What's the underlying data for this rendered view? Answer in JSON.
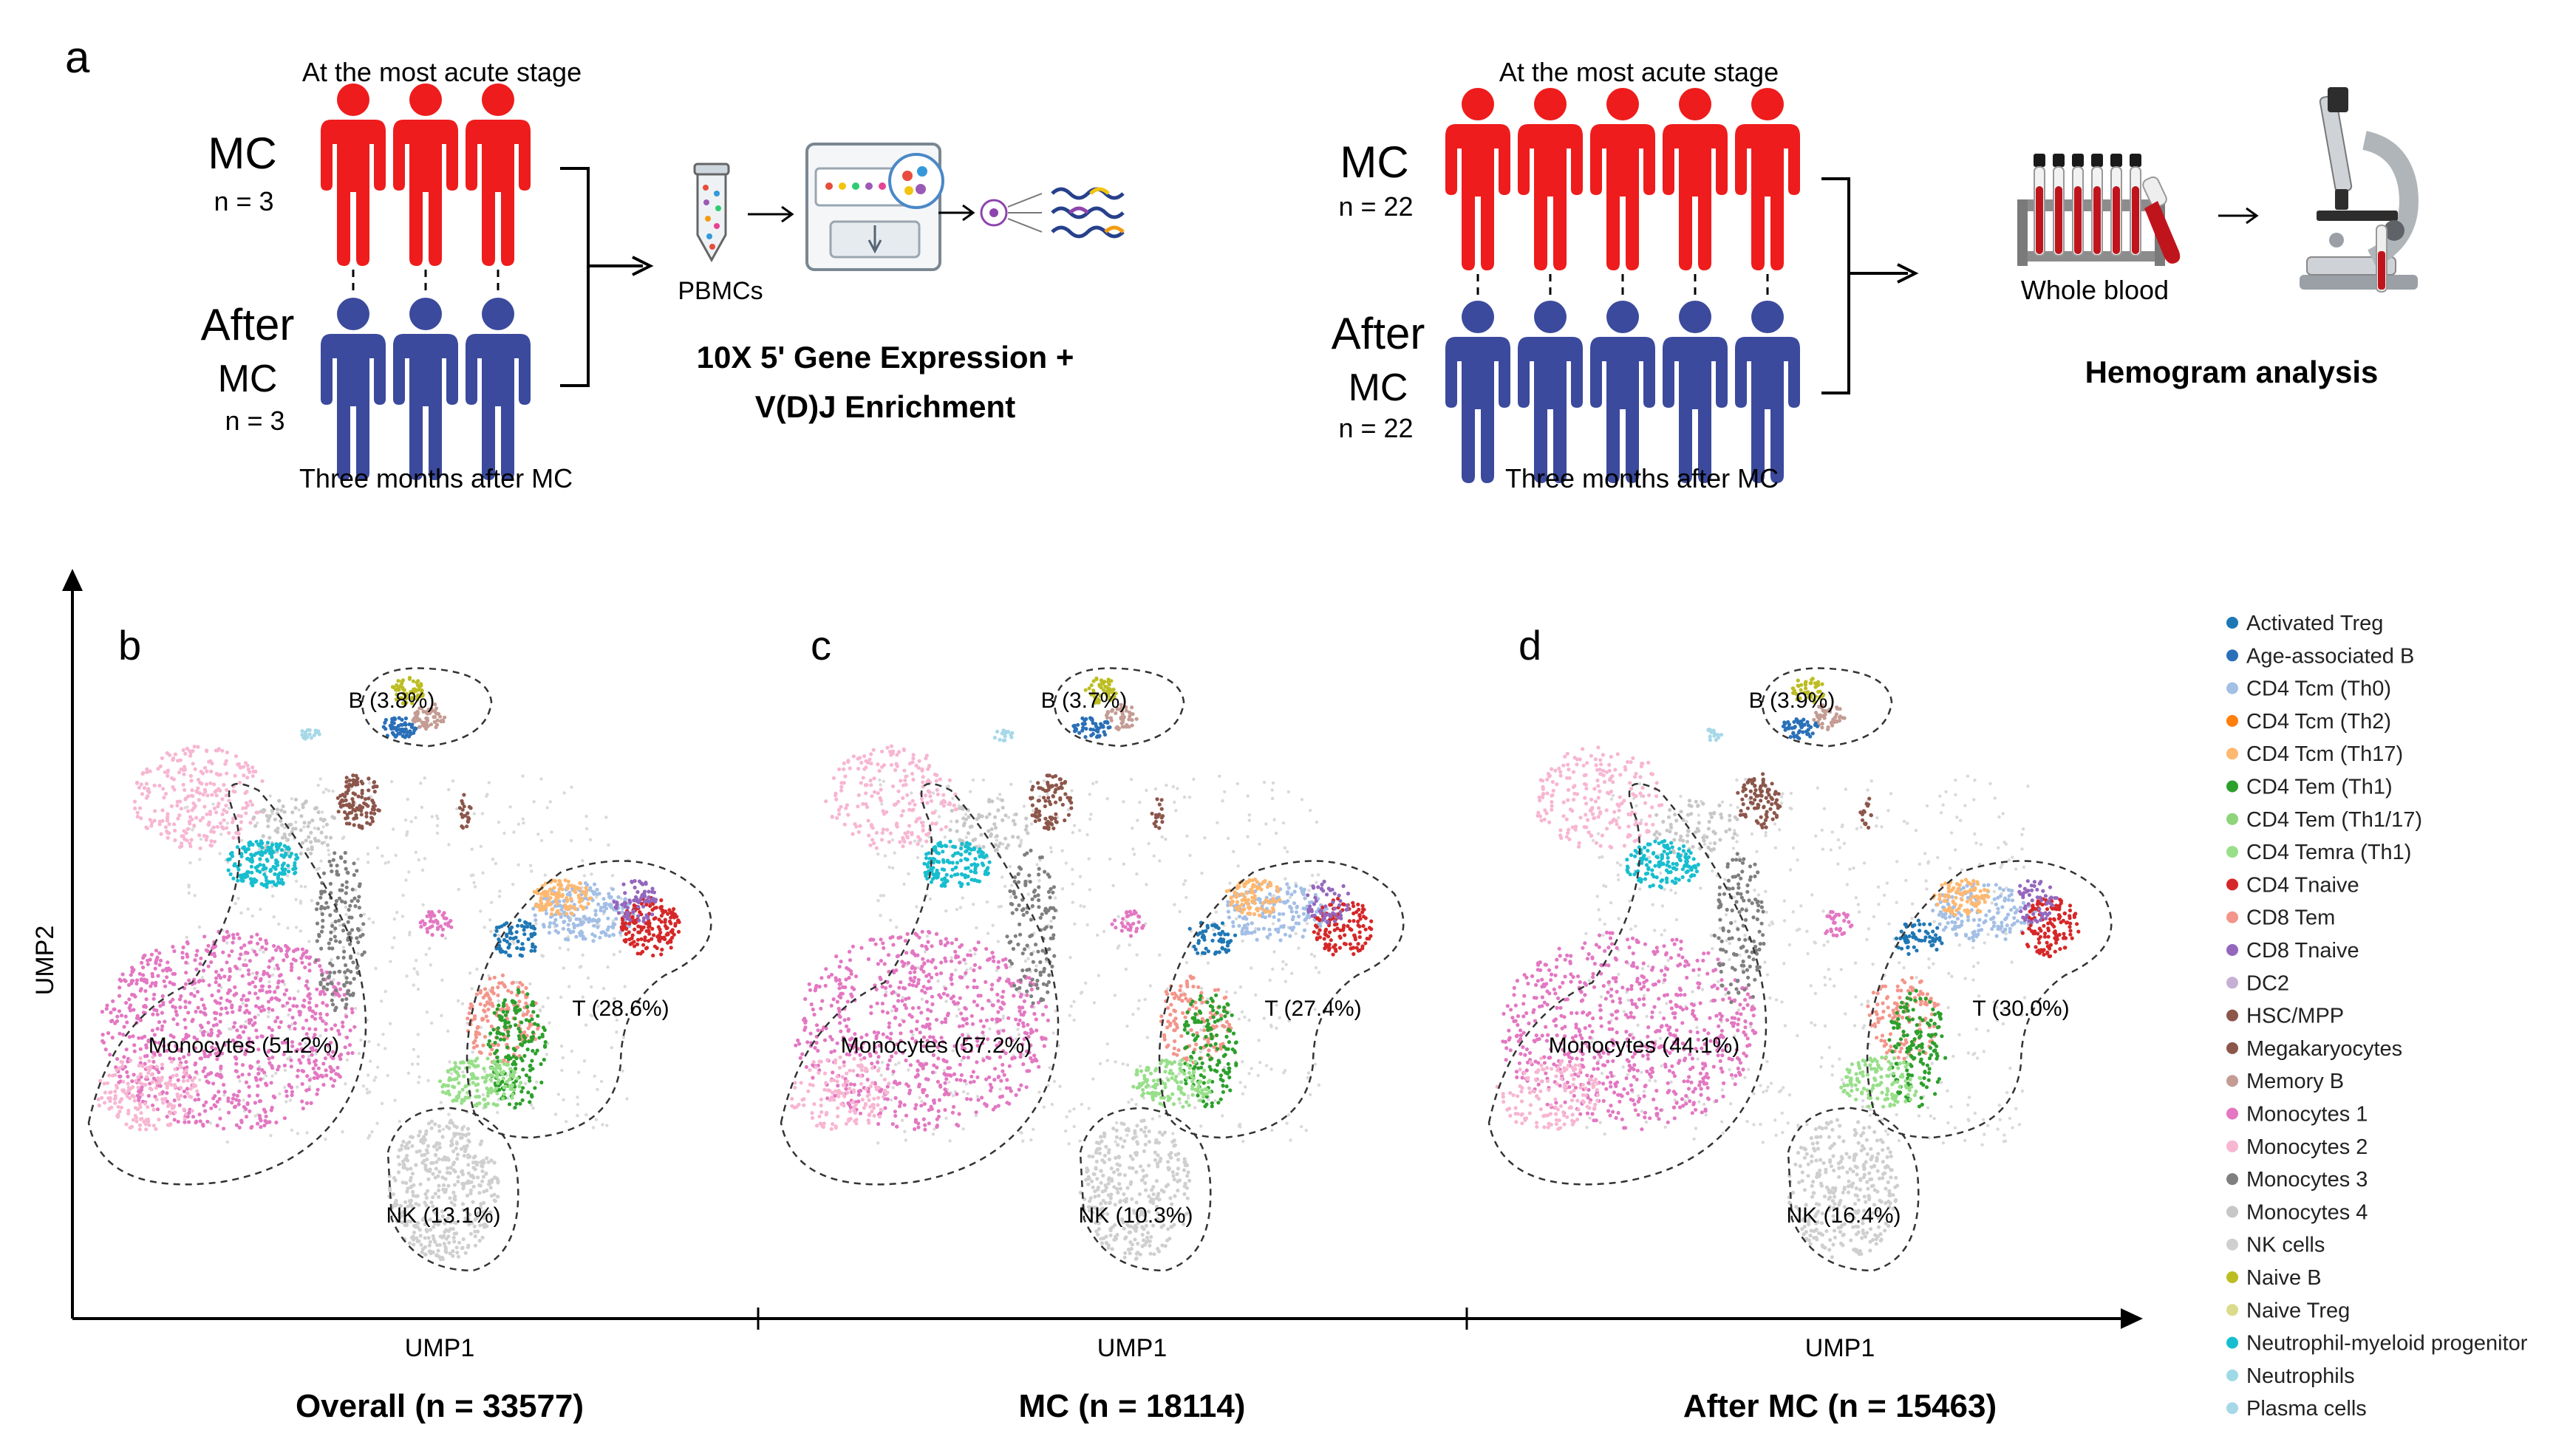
{
  "panel_a": {
    "label": "a",
    "left": {
      "top_caption": "At the most acute stage",
      "mc_label": "MC",
      "mc_n": "n = 3",
      "after_label_1": "After",
      "after_label_2": "MC",
      "after_n": "n = 3",
      "bottom_caption": "Three months after MC",
      "pbmc_label": "PBMCs",
      "method_line1": "10X 5' Gene Expression +",
      "method_line2": "V(D)J Enrichment",
      "mc_count": 3,
      "after_count": 3
    },
    "right": {
      "top_caption": "At the most acute stage",
      "mc_label": "MC",
      "mc_n": "n = 22",
      "after_label_1": "After",
      "after_label_2": "MC",
      "after_n": "n = 22",
      "bottom_caption": "Three months after MC",
      "whole_blood_label": "Whole blood",
      "analysis_label": "Hemogram analysis",
      "mc_count": 5,
      "after_count": 5
    },
    "colors": {
      "mc": "#ee1c1c",
      "after": "#3b4a9c"
    }
  },
  "panels": [
    {
      "label": "b",
      "title": "Overall (n = 33577)",
      "groups": {
        "B": "B (3.8%)",
        "Mono": "Monocytes (51.2%)",
        "T": "T (28.6%)",
        "NK": "NK (13.1%)"
      }
    },
    {
      "label": "c",
      "title": "MC (n = 18114)",
      "groups": {
        "B": "B (3.7%)",
        "Mono": "Monocytes (57.2%)",
        "T": "T (27.4%)",
        "NK": "NK (10.3%)"
      }
    },
    {
      "label": "d",
      "title": "After MC (n = 15463)",
      "groups": {
        "B": "B (3.9%)",
        "Mono": "Monocytes (44.1%)",
        "T": "T (30.0%)",
        "NK": "NK (16.4%)"
      }
    }
  ],
  "axes": {
    "x": "UMP1",
    "y": "UMP2"
  },
  "legend": [
    {
      "name": "Activated Treg",
      "color": "#1f77b4"
    },
    {
      "name": "Age-associated B",
      "color": "#2a6fb8"
    },
    {
      "name": "CD4 Tcm (Th0)",
      "color": "#a4bfe6"
    },
    {
      "name": "CD4 Tcm (Th2)",
      "color": "#ff7f0e"
    },
    {
      "name": "CD4 Tcm (Th17)",
      "color": "#ffb870"
    },
    {
      "name": "CD4 Tem (Th1)",
      "color": "#2ca02c"
    },
    {
      "name": "CD4 Tem (Th1/17)",
      "color": "#8fd37a"
    },
    {
      "name": "CD4 Temra (Th1)",
      "color": "#98df8a"
    },
    {
      "name": "CD4 Tnaive",
      "color": "#d62728"
    },
    {
      "name": "CD8 Tem",
      "color": "#f4958b"
    },
    {
      "name": "CD8 Tnaive",
      "color": "#9467bd"
    },
    {
      "name": "DC2",
      "color": "#c5b0d5"
    },
    {
      "name": "HSC/MPP",
      "color": "#8c564b"
    },
    {
      "name": "Megakaryocytes",
      "color": "#8c564b"
    },
    {
      "name": "Memory B",
      "color": "#c49c94"
    },
    {
      "name": "Monocytes 1",
      "color": "#e377c2"
    },
    {
      "name": "Monocytes 2",
      "color": "#f7b6d2"
    },
    {
      "name": "Monocytes 3",
      "color": "#7f7f7f"
    },
    {
      "name": "Monocytes 4",
      "color": "#c7c7c7"
    },
    {
      "name": "NK cells",
      "color": "#cfcfcf"
    },
    {
      "name": "Naive B",
      "color": "#bcbd22"
    },
    {
      "name": "Naive Treg",
      "color": "#dbdb8d"
    },
    {
      "name": "Neutrophil-myeloid progenitor",
      "color": "#17becf"
    },
    {
      "name": "Neutrophils",
      "color": "#9edae5"
    },
    {
      "name": "Plasma cells",
      "color": "#a6d8e8"
    }
  ]
}
